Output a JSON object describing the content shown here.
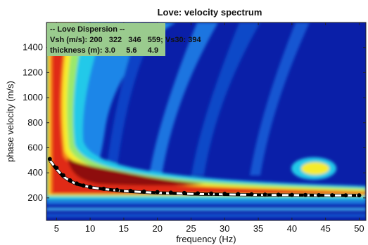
{
  "chart_data": {
    "type": "heatmap",
    "title": "Love: velocity spectrum",
    "xlabel": "frequency (Hz)",
    "ylabel": "phase velocity (m/s)",
    "xlim": [
      3.5,
      51
    ],
    "ylim": [
      20,
      1600
    ],
    "x_ticks": [
      5,
      10,
      15,
      20,
      25,
      30,
      35,
      40,
      45,
      50
    ],
    "y_ticks": [
      200,
      400,
      600,
      800,
      1000,
      1200,
      1400
    ],
    "colormap": "jet",
    "grid": false,
    "legend_box": {
      "placement": "top-left",
      "background": "#9acb8e",
      "lines": [
        "-- Love Dispersion --",
        "Vsh (m/s): 200   322   346   559; Vs30: 394",
        "thickness (m): 3.0     5.6     4.9"
      ]
    },
    "series": [
      {
        "style": "dashed",
        "color": "#ffffff",
        "x": [
          4,
          5,
          6,
          7,
          8,
          10,
          12,
          15,
          20,
          25,
          30,
          35,
          40,
          45,
          50
        ],
        "y": [
          500,
          430,
          370,
          335,
          310,
          285,
          270,
          255,
          240,
          232,
          228,
          224,
          222,
          220,
          219
        ]
      },
      {
        "style": "dotted",
        "color": "#000000",
        "x": [
          4,
          5,
          6,
          7,
          8,
          9,
          10,
          12,
          14,
          16,
          18,
          20,
          22,
          24,
          26,
          28,
          30,
          32,
          34,
          36,
          38,
          40,
          42,
          44,
          46,
          48,
          50
        ],
        "y": [
          510,
          440,
          380,
          340,
          315,
          298,
          287,
          273,
          263,
          256,
          250,
          246,
          242,
          239,
          236,
          234,
          232,
          230,
          228,
          226,
          225,
          224,
          223,
          222,
          221,
          220,
          220
        ]
      }
    ]
  }
}
